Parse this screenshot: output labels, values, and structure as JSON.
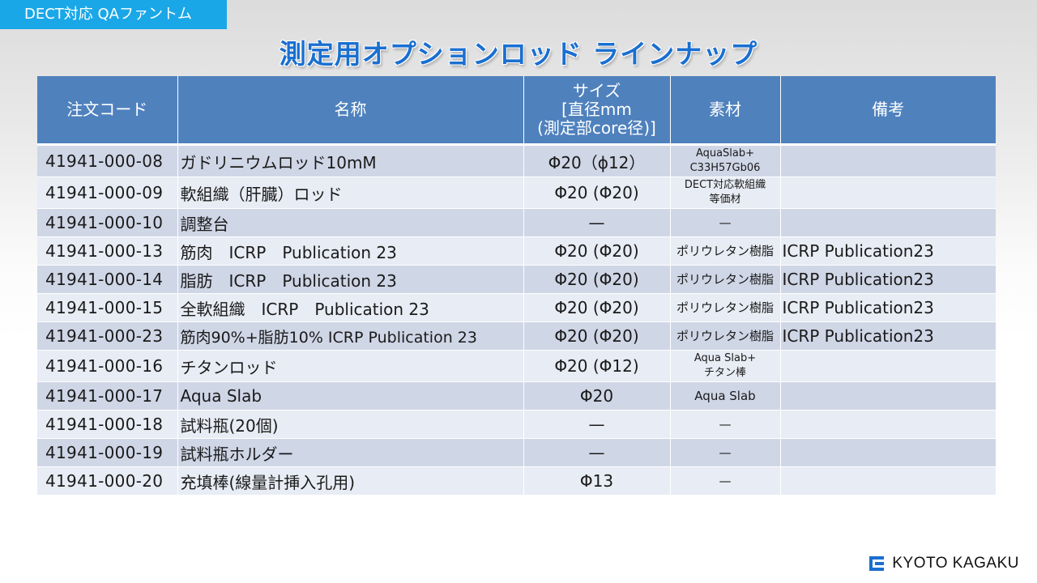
{
  "header_tag": "DECT対応 QAファントム",
  "title": "測定用オプションロッド ラインナップ",
  "table": {
    "headers": {
      "code": "注文コード",
      "name": "名称",
      "size": "サイズ\n[直径mm\n(測定部core径)]",
      "material": "素材",
      "notes": "備考"
    },
    "rows": [
      {
        "code": "41941-000-08",
        "name": "ガドリニウムロッド10mM",
        "size": "Φ20（ϕ12）",
        "material": "AquaSlab+\nC33H57Gb06",
        "notes": ""
      },
      {
        "code": "41941-000-09",
        "name": "軟組織（肝臓）ロッド",
        "size": "Φ20 (Φ20)",
        "material": "DECT対応軟組織\n等価材",
        "notes": ""
      },
      {
        "code": "41941-000-10",
        "name": "調整台",
        "size": "—",
        "material": "—",
        "notes": ""
      },
      {
        "code": "41941-000-13",
        "name": "筋肉　ICRP　Publication 23",
        "size": "Φ20 (Φ20)",
        "material": "ポリウレタン樹脂",
        "notes": "ICRP Publication23"
      },
      {
        "code": "41941-000-14",
        "name": "脂肪　ICRP　Publication 23",
        "size": "Φ20 (Φ20)",
        "material": "ポリウレタン樹脂",
        "notes": "ICRP Publication23"
      },
      {
        "code": "41941-000-15",
        "name": "全軟組織　ICRP　Publication 23",
        "size": "Φ20 (Φ20)",
        "material": "ポリウレタン樹脂",
        "notes": "ICRP Publication23"
      },
      {
        "code": "41941-000-23",
        "name": "筋肉90%+脂肪10% ICRP Publication 23",
        "size": "Φ20 (Φ20)",
        "material": "ポリウレタン樹脂",
        "notes": "ICRP Publication23"
      },
      {
        "code": "41941-000-16",
        "name": "チタンロッド",
        "size": "Φ20 (Φ12)",
        "material": "Aqua Slab+\nチタン棒",
        "notes": ""
      },
      {
        "code": "41941-000-17",
        "name": "Aqua Slab",
        "size": "Φ20",
        "material": "Aqua Slab",
        "notes": ""
      },
      {
        "code": "41941-000-18",
        "name": "試料瓶(20個)",
        "size": "—",
        "material": "—",
        "notes": ""
      },
      {
        "code": "41941-000-19",
        "name": "試料瓶ホルダー",
        "size": "—",
        "material": "—",
        "notes": ""
      },
      {
        "code": "41941-000-20",
        "name": "充填棒(線量計挿入孔用)",
        "size": "Φ13",
        "material": "—",
        "notes": ""
      }
    ]
  },
  "logo": {
    "text": "KYOTO KAGAKU",
    "icon": "kyoto-kagaku-logo-icon",
    "color": "#1a6fd0"
  },
  "colors": {
    "tag": "#1aa7e8",
    "title": "#1a6fd0",
    "table_header": "#4f81bd",
    "row_dark": "#cfd6e6",
    "row_light": "#e8ecf4"
  }
}
